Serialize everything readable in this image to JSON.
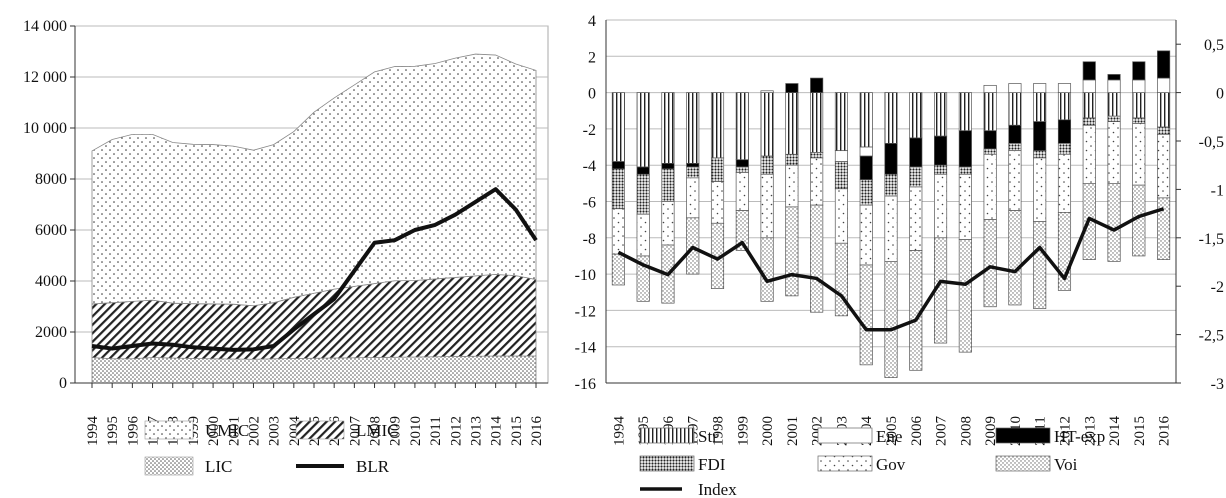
{
  "chart_data": [
    {
      "type": "area",
      "title": "",
      "xlabel": "",
      "ylabel": "",
      "ylim": [
        0,
        14000
      ],
      "yticks": [
        "0",
        "2000",
        "4000",
        "6000",
        "8000",
        "10 000",
        "12 000",
        "14 000"
      ],
      "ytick_values": [
        0,
        2000,
        4000,
        6000,
        8000,
        10000,
        12000,
        14000
      ],
      "grid": "horizontal",
      "legend_position": "bottom",
      "categories": [
        "1994",
        "1995",
        "1996",
        "1997",
        "1998",
        "1999",
        "2000",
        "2001",
        "2002",
        "2003",
        "2004",
        "2005",
        "2006",
        "2007",
        "2008",
        "2009",
        "2010",
        "2011",
        "2012",
        "2013",
        "2014",
        "2015",
        "2016"
      ],
      "series": [
        {
          "name": "LIC",
          "kind": "stacked-area",
          "pattern": "dots-dense",
          "values": [
            1000,
            950,
            950,
            1000,
            980,
            960,
            950,
            940,
            930,
            950,
            960,
            970,
            980,
            990,
            1000,
            1010,
            1020,
            1030,
            1040,
            1050,
            1060,
            1060,
            1060
          ]
        },
        {
          "name": "LMIC",
          "kind": "stacked-area",
          "pattern": "diagonal-hatch",
          "values": [
            2100,
            2200,
            2250,
            2250,
            2150,
            2150,
            2150,
            2150,
            2100,
            2200,
            2400,
            2550,
            2700,
            2800,
            2900,
            3000,
            3000,
            3050,
            3100,
            3150,
            3200,
            3150,
            3000
          ]
        },
        {
          "name": "UMIC",
          "kind": "stacked-area",
          "pattern": "dots-sparse",
          "values": [
            6000,
            6400,
            6550,
            6500,
            6300,
            6250,
            6250,
            6200,
            6100,
            6200,
            6500,
            7100,
            7500,
            7900,
            8300,
            8400,
            8400,
            8450,
            8600,
            8700,
            8600,
            8300,
            8200
          ]
        },
        {
          "name": "BLR",
          "kind": "line",
          "values": [
            1450,
            1350,
            1450,
            1550,
            1500,
            1400,
            1350,
            1300,
            1320,
            1450,
            2100,
            2700,
            3300,
            4400,
            5500,
            5600,
            6000,
            6200,
            6600,
            7100,
            7600,
            6800,
            5600
          ]
        }
      ],
      "legend": [
        "UMIC",
        "LMIC",
        "LIC",
        "BLR"
      ]
    },
    {
      "type": "bar",
      "title": "",
      "xlabel": "",
      "ylabel": "",
      "ylim": [
        -16,
        4
      ],
      "y2lim": [
        -3,
        0.75
      ],
      "yticks": [
        "4",
        "2",
        "0",
        "-2",
        "-4",
        "-6",
        "-8",
        "-10",
        "-12",
        "-14",
        "-16"
      ],
      "ytick_values": [
        4,
        2,
        0,
        -2,
        -4,
        -6,
        -8,
        -10,
        -12,
        -14,
        -16
      ],
      "y2ticks": [
        "0,5",
        "0",
        "-0,5",
        "-1",
        "-1,5",
        "-2",
        "-2,5",
        "-3"
      ],
      "y2tick_values": [
        0.5,
        0,
        -0.5,
        -1,
        -1.5,
        -2,
        -2.5,
        -3
      ],
      "grid": "horizontal",
      "legend_position": "bottom",
      "categories": [
        "1994",
        "1995",
        "1996",
        "1997",
        "1998",
        "1999",
        "2000",
        "2001",
        "2002",
        "2003",
        "2004",
        "2005",
        "2006",
        "2007",
        "2008",
        "2009",
        "2010",
        "2011",
        "2012",
        "2013",
        "2014",
        "2015",
        "2016"
      ],
      "series": [
        {
          "name": "Str",
          "pattern": "vertical-lines",
          "values": [
            -3.8,
            -4.1,
            -3.9,
            -3.9,
            -3.6,
            -3.7,
            -3.5,
            -3.4,
            -3.3,
            -3.2,
            -3.0,
            -2.8,
            -2.5,
            -2.4,
            -2.1,
            -2.1,
            -1.8,
            -1.6,
            -1.5,
            -1.4,
            -1.3,
            -1.4,
            -1.9
          ]
        },
        {
          "name": "Ene",
          "pattern": "white",
          "values": [
            0,
            0,
            0,
            0,
            0,
            0,
            0.1,
            0,
            0,
            -0.6,
            -0.5,
            0,
            0,
            0,
            0,
            0.4,
            0.5,
            0.5,
            0.5,
            0.7,
            0.7,
            0.7,
            0.8
          ]
        },
        {
          "name": "HT-exp",
          "pattern": "black",
          "values": [
            -0.4,
            -0.4,
            -0.3,
            -0.2,
            0,
            -0.4,
            0,
            0.5,
            0.8,
            0,
            -1.3,
            -1.7,
            -1.6,
            -1.6,
            -2.0,
            -1.0,
            -1.0,
            -1.6,
            -1.3,
            1.0,
            0.3,
            1.0,
            1.5
          ]
        },
        {
          "name": "FDI",
          "pattern": "dense-dots",
          "values": [
            -2.2,
            -2.2,
            -1.8,
            -0.6,
            -1.3,
            -0.3,
            -1.0,
            -0.6,
            -0.3,
            -1.5,
            -1.4,
            -1.2,
            -1.1,
            -0.5,
            -0.4,
            -0.3,
            -0.4,
            -0.4,
            -0.6,
            -0.4,
            -0.3,
            -0.3,
            -0.4
          ]
        },
        {
          "name": "Gov",
          "pattern": "sparse-dots",
          "values": [
            -2.5,
            -2.3,
            -2.4,
            -2.2,
            -2.3,
            -2.1,
            -3.5,
            -2.3,
            -2.6,
            -3.0,
            -3.3,
            -3.6,
            -3.5,
            -3.5,
            -3.6,
            -3.6,
            -3.3,
            -3.5,
            -3.2,
            -3.2,
            -3.4,
            -3.4,
            -3.5
          ]
        },
        {
          "name": "Voi",
          "pattern": "fine-dots",
          "values": [
            -1.7,
            -2.5,
            -3.2,
            -3.1,
            -3.6,
            -2.2,
            -3.5,
            -4.9,
            -5.9,
            -4.0,
            -5.5,
            -6.4,
            -6.6,
            -5.8,
            -6.2,
            -4.8,
            -5.2,
            -4.8,
            -4.3,
            -4.2,
            -4.3,
            -3.9,
            -3.4
          ]
        },
        {
          "name": "Index",
          "kind": "line",
          "axis": "right",
          "values": [
            -1.65,
            -1.78,
            -1.88,
            -1.6,
            -1.72,
            -1.55,
            -1.95,
            -1.88,
            -1.92,
            -2.1,
            -2.45,
            -2.45,
            -2.35,
            -1.95,
            -1.98,
            -1.8,
            -1.85,
            -1.6,
            -1.92,
            -1.3,
            -1.42,
            -1.28,
            -1.2
          ]
        }
      ],
      "legend": [
        "Str",
        "Ene",
        "HT-exp",
        "FDI",
        "Gov",
        "Voi",
        "Index"
      ]
    }
  ]
}
